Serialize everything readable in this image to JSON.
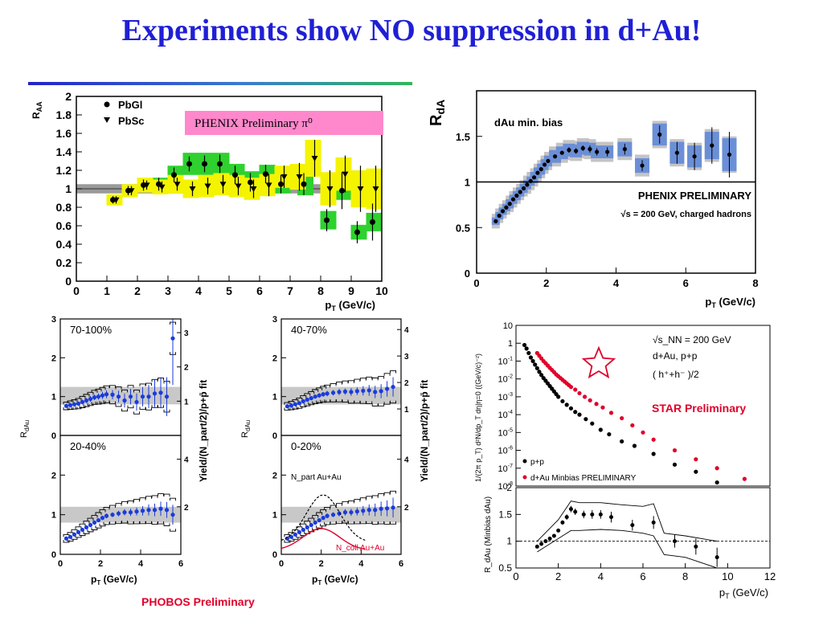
{
  "slide": {
    "title": "Experiments show NO suppression in d+Au!"
  },
  "colors": {
    "title_blue": "#1f1fd6",
    "phenix_band_blue": "#6b8fd6",
    "phenix_band_gray": "#c4c4c4",
    "pbgl_green": "#2ed12e",
    "pbsc_yellow": "#f4f400",
    "label_pink": "#ff88cc",
    "phobos_blue": "#1a3bdb",
    "star_red": "#e0002a"
  },
  "captions": {
    "phobos": "PHOBOS Preliminary",
    "star": "STAR Preliminary"
  },
  "chart_data": [
    {
      "id": "phenix-pi0",
      "type": "scatter",
      "title": "",
      "annotation": "PHENIX Preliminary π⁰",
      "ylabel": "R_AA",
      "xlabel": "p_T (GeV/c)",
      "xlim": [
        0,
        10
      ],
      "ylim": [
        0,
        2
      ],
      "xticks": [
        0,
        1,
        2,
        3,
        4,
        5,
        6,
        7,
        8,
        9,
        10
      ],
      "yticks": [
        0,
        0.2,
        0.4,
        0.6,
        0.8,
        1,
        1.2,
        1.4,
        1.6,
        1.8,
        2
      ],
      "ref_band": [
        0.95,
        1.05
      ],
      "legend": [
        "PbGl",
        "PbSc"
      ],
      "series": [
        {
          "name": "PbGl",
          "marker": "circle",
          "band_color": "green",
          "x": [
            1.25,
            1.75,
            2.25,
            2.75,
            3.25,
            3.75,
            4.25,
            4.75,
            5.25,
            5.75,
            6.25,
            6.75,
            7.5,
            8.25,
            8.75,
            9.25,
            9.75
          ],
          "y": [
            0.88,
            0.98,
            1.04,
            1.05,
            1.15,
            1.27,
            1.27,
            1.27,
            1.15,
            1.07,
            1.16,
            1.05,
            1.05,
            0.66,
            0.98,
            0.53,
            0.64
          ],
          "err": [
            0.04,
            0.05,
            0.06,
            0.07,
            0.08,
            0.08,
            0.09,
            0.1,
            0.1,
            0.1,
            0.1,
            0.1,
            0.12,
            0.12,
            0.2,
            0.12,
            0.2
          ],
          "sys": [
            0.04,
            0.06,
            0.07,
            0.07,
            0.1,
            0.12,
            0.12,
            0.12,
            0.12,
            0.12,
            0.1,
            0.1,
            0.12,
            0.1,
            0.1,
            0.08,
            0.1
          ]
        },
        {
          "name": "PbSc",
          "marker": "triangle",
          "band_color": "yellow",
          "x": [
            1.25,
            1.75,
            2.25,
            2.75,
            3.25,
            3.75,
            4.25,
            4.75,
            5.25,
            5.75,
            6.25,
            6.75,
            7.25,
            7.75,
            8.25,
            8.75,
            9.25,
            9.75
          ],
          "y": [
            0.88,
            0.98,
            1.04,
            1.02,
            1.05,
            1.0,
            1.03,
            1.05,
            1.03,
            1.0,
            1.04,
            1.13,
            1.13,
            1.33,
            1.0,
            1.16,
            1.0,
            1.0
          ],
          "err": [
            0.04,
            0.05,
            0.05,
            0.06,
            0.07,
            0.08,
            0.09,
            0.1,
            0.1,
            0.1,
            0.12,
            0.12,
            0.15,
            0.2,
            0.2,
            0.2,
            0.25,
            0.25
          ],
          "sys": [
            0.06,
            0.07,
            0.08,
            0.08,
            0.1,
            0.1,
            0.12,
            0.12,
            0.12,
            0.12,
            0.12,
            0.12,
            0.14,
            0.2,
            0.18,
            0.18,
            0.2,
            0.22
          ]
        }
      ]
    },
    {
      "id": "phenix-hadrons",
      "type": "scatter",
      "ylabel": "R_dA",
      "xlabel": "p_T (GeV/c)",
      "xlim": [
        0,
        8
      ],
      "ylim": [
        0,
        2
      ],
      "xticks": [
        0,
        2,
        4,
        6,
        8
      ],
      "yticks": [
        0,
        0.5,
        1,
        1.5
      ],
      "annotations": [
        "dAu min. bias",
        "PHENIX PRELIMINARY",
        "√s = 200 GeV, charged hadrons"
      ],
      "reference_line": 1,
      "series": [
        {
          "name": "dAu min. bias",
          "x": [
            0.55,
            0.65,
            0.75,
            0.85,
            0.95,
            1.05,
            1.15,
            1.25,
            1.35,
            1.45,
            1.55,
            1.65,
            1.75,
            1.85,
            1.95,
            2.05,
            2.25,
            2.45,
            2.65,
            2.85,
            3.05,
            3.25,
            3.45,
            3.75,
            4.25,
            4.75,
            5.25,
            5.75,
            6.25,
            6.75,
            7.25
          ],
          "y": [
            0.57,
            0.63,
            0.68,
            0.72,
            0.76,
            0.81,
            0.85,
            0.89,
            0.93,
            0.97,
            1.01,
            1.05,
            1.1,
            1.14,
            1.19,
            1.23,
            1.28,
            1.32,
            1.35,
            1.34,
            1.37,
            1.36,
            1.33,
            1.33,
            1.36,
            1.18,
            1.52,
            1.32,
            1.28,
            1.4,
            1.3
          ],
          "err": [
            0.02,
            0.02,
            0.02,
            0.02,
            0.02,
            0.02,
            0.02,
            0.02,
            0.02,
            0.02,
            0.02,
            0.02,
            0.02,
            0.02,
            0.02,
            0.02,
            0.02,
            0.02,
            0.03,
            0.03,
            0.03,
            0.04,
            0.04,
            0.05,
            0.06,
            0.06,
            0.1,
            0.12,
            0.15,
            0.2,
            0.25
          ],
          "band_blue": [
            0.04,
            0.04,
            0.04,
            0.04,
            0.05,
            0.05,
            0.05,
            0.05,
            0.05,
            0.05,
            0.05,
            0.06,
            0.06,
            0.06,
            0.06,
            0.06,
            0.07,
            0.07,
            0.07,
            0.07,
            0.07,
            0.07,
            0.07,
            0.07,
            0.08,
            0.08,
            0.12,
            0.12,
            0.12,
            0.15,
            0.18
          ],
          "band_gray": [
            0.08,
            0.08,
            0.08,
            0.08,
            0.09,
            0.09,
            0.09,
            0.09,
            0.09,
            0.1,
            0.1,
            0.1,
            0.1,
            0.1,
            0.1,
            0.1,
            0.11,
            0.11,
            0.11,
            0.11,
            0.11,
            0.11,
            0.11,
            0.11,
            0.12,
            0.12,
            0.15,
            0.15,
            0.15,
            0.18,
            0.2
          ]
        }
      ]
    },
    {
      "id": "phobos",
      "type": "scatter",
      "ylabel": "R_dAu",
      "right_ylabel": "Yield/(N_part/2)/p+p̄ fit",
      "xlabel": "p_T (GeV/c)",
      "xlim": [
        0,
        6
      ],
      "xticks": [
        0,
        2,
        4,
        6
      ],
      "left_yticks": [
        0,
        1,
        2,
        3
      ],
      "right_yticks_top": [
        1,
        2,
        3
      ],
      "right_yticks_bottom": [
        2,
        4
      ],
      "right_yticks_top_right": [
        1,
        2,
        3,
        4
      ],
      "panels": [
        {
          "label": "70-100%",
          "ylim": [
            0,
            3
          ],
          "band": [
            0.8,
            1.25
          ],
          "x": [
            0.3,
            0.5,
            0.7,
            0.9,
            1.1,
            1.3,
            1.5,
            1.7,
            1.9,
            2.1,
            2.3,
            2.6,
            2.9,
            3.2,
            3.5,
            3.8,
            4.1,
            4.4,
            4.7,
            5.0,
            5.3,
            5.6
          ],
          "y": [
            0.76,
            0.78,
            0.8,
            0.82,
            0.86,
            0.9,
            0.94,
            0.98,
            1.0,
            1.03,
            1.06,
            1.05,
            1.0,
            0.9,
            1.0,
            0.86,
            1.0,
            1.0,
            1.08,
            1.1,
            1.0,
            2.5
          ],
          "err": [
            0.05,
            0.05,
            0.05,
            0.05,
            0.06,
            0.06,
            0.07,
            0.07,
            0.08,
            0.09,
            0.1,
            0.12,
            0.15,
            0.18,
            0.2,
            0.22,
            0.25,
            0.3,
            0.35,
            0.4,
            0.5,
            1.2
          ]
        },
        {
          "label": "40-70%",
          "ylim": [
            0,
            3
          ],
          "band": [
            0.8,
            1.25
          ],
          "x": [
            0.3,
            0.5,
            0.7,
            0.9,
            1.1,
            1.3,
            1.5,
            1.7,
            1.9,
            2.1,
            2.3,
            2.6,
            2.9,
            3.2,
            3.5,
            3.8,
            4.1,
            4.4,
            4.7,
            5.0,
            5.3,
            5.6
          ],
          "y": [
            0.75,
            0.77,
            0.8,
            0.83,
            0.88,
            0.92,
            0.96,
            1.0,
            1.03,
            1.06,
            1.08,
            1.1,
            1.12,
            1.13,
            1.12,
            1.14,
            1.15,
            1.16,
            1.12,
            1.14,
            1.2,
            1.25
          ],
          "err": [
            0.04,
            0.04,
            0.04,
            0.04,
            0.05,
            0.05,
            0.05,
            0.05,
            0.06,
            0.06,
            0.07,
            0.07,
            0.08,
            0.08,
            0.1,
            0.1,
            0.12,
            0.14,
            0.16,
            0.18,
            0.2,
            0.25
          ]
        },
        {
          "label": "20-40%",
          "ylim": [
            0,
            3
          ],
          "band": [
            0.8,
            1.2
          ],
          "x": [
            0.3,
            0.5,
            0.7,
            0.9,
            1.1,
            1.3,
            1.5,
            1.7,
            1.9,
            2.1,
            2.3,
            2.6,
            2.9,
            3.2,
            3.5,
            3.8,
            4.1,
            4.4,
            4.7,
            5.0,
            5.3,
            5.6
          ],
          "y": [
            0.4,
            0.44,
            0.5,
            0.56,
            0.62,
            0.68,
            0.74,
            0.8,
            0.86,
            0.92,
            0.97,
            1.0,
            1.03,
            1.06,
            1.06,
            1.08,
            1.1,
            1.12,
            1.12,
            1.15,
            1.12,
            1.0
          ],
          "err": [
            0.03,
            0.03,
            0.03,
            0.03,
            0.04,
            0.04,
            0.04,
            0.05,
            0.05,
            0.05,
            0.06,
            0.06,
            0.07,
            0.08,
            0.09,
            0.1,
            0.12,
            0.14,
            0.16,
            0.18,
            0.2,
            0.25
          ]
        },
        {
          "label": "0-20%",
          "ylim": [
            0,
            3
          ],
          "band": [
            0.8,
            1.2
          ],
          "annotations": [
            "N_part Au+Au",
            "N_coll Au+Au"
          ],
          "x": [
            0.3,
            0.5,
            0.7,
            0.9,
            1.1,
            1.3,
            1.5,
            1.7,
            1.9,
            2.1,
            2.3,
            2.6,
            2.9,
            3.2,
            3.5,
            3.8,
            4.1,
            4.4,
            4.7,
            5.0,
            5.3,
            5.6
          ],
          "y": [
            0.4,
            0.44,
            0.5,
            0.56,
            0.62,
            0.68,
            0.74,
            0.8,
            0.86,
            0.92,
            0.97,
            1.0,
            1.03,
            1.06,
            1.06,
            1.08,
            1.1,
            1.12,
            1.12,
            1.15,
            1.16,
            1.18
          ],
          "err": [
            0.03,
            0.03,
            0.03,
            0.03,
            0.04,
            0.04,
            0.04,
            0.05,
            0.05,
            0.05,
            0.06,
            0.06,
            0.07,
            0.08,
            0.09,
            0.1,
            0.12,
            0.14,
            0.16,
            0.18,
            0.2,
            0.25
          ]
        }
      ]
    },
    {
      "id": "star-spectra",
      "type": "scatter",
      "scale": "log",
      "ylabel": "1/(2π p_T) d²N/dp_T dη|η=0 ((GeV/c)⁻²)",
      "xlim": [
        0,
        12
      ],
      "ylim_exp": [
        -8,
        1
      ],
      "yticks_exp": [
        1,
        0,
        -1,
        -2,
        -3,
        -4,
        -5,
        -6,
        -7,
        -8
      ],
      "annotations": [
        "√s_NN = 200 GeV",
        "d+Au, p+p",
        "( h⁺+h⁻ )/2"
      ],
      "legend": [
        "p+p",
        "d+Au Minbias PRELIMINARY"
      ],
      "series": [
        {
          "name": "p+p",
          "color": "black",
          "x": [
            0.4,
            0.5,
            0.6,
            0.7,
            0.8,
            0.9,
            1.0,
            1.1,
            1.2,
            1.3,
            1.4,
            1.5,
            1.6,
            1.7,
            1.8,
            1.9,
            2.0,
            2.2,
            2.4,
            2.6,
            2.8,
            3.0,
            3.3,
            3.6,
            4.0,
            4.4,
            5.0,
            5.6,
            6.5,
            7.5,
            8.5,
            9.5
          ],
          "y_log10": [
            -0.1,
            -0.3,
            -0.55,
            -0.8,
            -1.0,
            -1.2,
            -1.4,
            -1.6,
            -1.78,
            -1.95,
            -2.1,
            -2.25,
            -2.4,
            -2.55,
            -2.7,
            -2.85,
            -3.0,
            -3.25,
            -3.45,
            -3.65,
            -3.85,
            -4.0,
            -4.25,
            -4.5,
            -4.85,
            -5.1,
            -5.5,
            -5.75,
            -6.2,
            -6.8,
            -7.2,
            -7.8
          ]
        },
        {
          "name": "d+Au Minbias PRELIMINARY",
          "color": "red",
          "x": [
            1.0,
            1.1,
            1.2,
            1.3,
            1.4,
            1.5,
            1.6,
            1.7,
            1.8,
            1.9,
            2.0,
            2.1,
            2.2,
            2.3,
            2.4,
            2.5,
            2.6,
            2.8,
            3.0,
            3.25,
            3.5,
            3.8,
            4.1,
            4.5,
            5.0,
            5.5,
            6.0,
            6.5,
            7.5,
            8.5,
            9.5,
            10.8
          ],
          "y_log10": [
            -0.55,
            -0.7,
            -0.85,
            -1.0,
            -1.12,
            -1.25,
            -1.38,
            -1.5,
            -1.62,
            -1.75,
            -1.85,
            -1.95,
            -2.05,
            -2.15,
            -2.25,
            -2.35,
            -2.45,
            -2.6,
            -2.8,
            -3.0,
            -3.2,
            -3.4,
            -3.6,
            -3.9,
            -4.2,
            -4.6,
            -5.0,
            -5.4,
            -6.0,
            -6.5,
            -7.0,
            -7.6
          ]
        }
      ]
    },
    {
      "id": "star-ratio",
      "type": "scatter",
      "ylabel": "R_dAu (Minbias dAu)",
      "xlabel": "p_T (GeV/c)",
      "xlim": [
        0,
        12
      ],
      "ylim": [
        0.5,
        2.0
      ],
      "xticks": [
        0,
        2,
        4,
        6,
        8,
        10,
        12
      ],
      "yticks": [
        0.5,
        1,
        1.5,
        2
      ],
      "reference_line": 1,
      "series": [
        {
          "name": "R_dAu",
          "x": [
            1.0,
            1.2,
            1.4,
            1.6,
            1.8,
            2.0,
            2.2,
            2.4,
            2.6,
            2.8,
            3.2,
            3.6,
            4.0,
            4.5,
            5.5,
            6.5,
            7.5,
            8.5,
            9.5
          ],
          "y": [
            0.9,
            0.95,
            1.0,
            1.05,
            1.1,
            1.2,
            1.35,
            1.45,
            1.6,
            1.55,
            1.5,
            1.5,
            1.5,
            1.45,
            1.3,
            1.35,
            1.0,
            0.9,
            0.7
          ],
          "err": [
            0.02,
            0.02,
            0.02,
            0.02,
            0.03,
            0.03,
            0.04,
            0.05,
            0.06,
            0.06,
            0.07,
            0.08,
            0.08,
            0.1,
            0.1,
            0.12,
            0.12,
            0.15,
            0.18
          ]
        }
      ],
      "envelope": {
        "x": [
          1.0,
          2.0,
          2.6,
          3.0,
          4.0,
          5.0,
          6.0,
          6.5,
          7.0,
          8.0,
          9.5
        ],
        "upper": [
          1.0,
          1.4,
          1.75,
          1.72,
          1.72,
          1.68,
          1.65,
          1.7,
          1.15,
          1.1,
          1.0
        ],
        "lower": [
          0.8,
          1.05,
          1.2,
          1.2,
          1.22,
          1.2,
          1.15,
          1.1,
          0.75,
          0.7,
          0.5
        ]
      }
    }
  ]
}
